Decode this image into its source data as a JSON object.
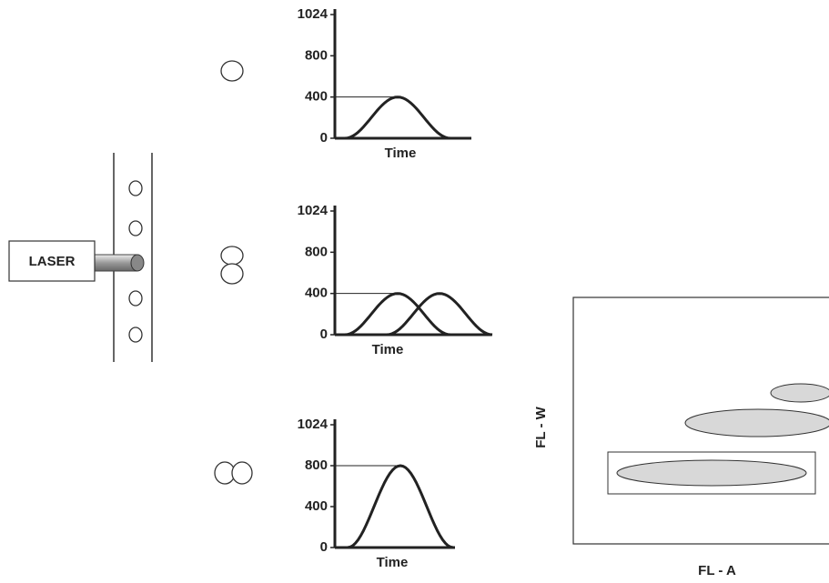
{
  "laser": {
    "label": "LASER"
  },
  "panels": [
    {
      "ylim": [
        0,
        1024
      ],
      "yticks": [
        0,
        400,
        800,
        1024
      ],
      "xlabel": "Time",
      "peaks": [
        400
      ]
    },
    {
      "ylim": [
        0,
        1024
      ],
      "yticks": [
        0,
        400,
        800,
        1024
      ],
      "xlabel": "Time",
      "peaks": [
        400,
        400
      ]
    },
    {
      "ylim": [
        0,
        1024
      ],
      "yticks": [
        0,
        400,
        800,
        1024
      ],
      "xlabel": "Time",
      "peaks": [
        800
      ]
    }
  ],
  "dot_plot": {
    "xlabel": "FL - A",
    "ylabel": "FL - W"
  }
}
